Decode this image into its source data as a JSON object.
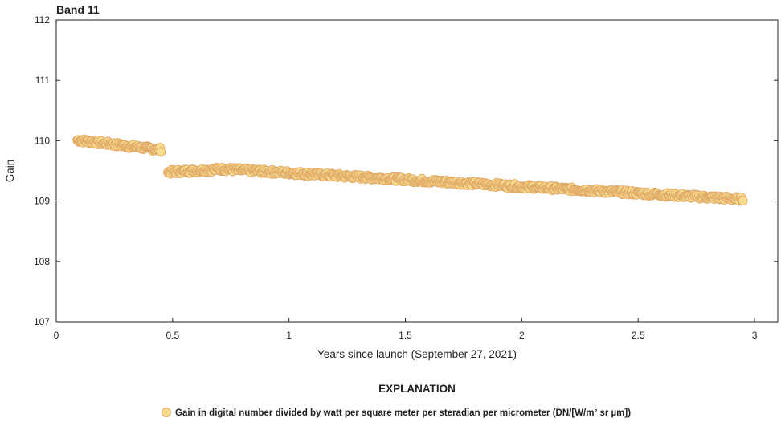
{
  "chart_data": {
    "type": "scatter",
    "title": "Band 11",
    "xlabel": "Years since launch (September 27, 2021)",
    "ylabel": "Gain",
    "xlim": [
      0,
      3.1
    ],
    "ylim": [
      107,
      112
    ],
    "x_ticks": [
      "0",
      "0.5",
      "1",
      "1.5",
      "2",
      "2.5",
      "3"
    ],
    "y_ticks": [
      "107",
      "108",
      "109",
      "110",
      "111",
      "112"
    ],
    "grid": false,
    "legend_title": "EXPLANATION",
    "legend_position": "bottom-center",
    "series": [
      {
        "name": "Gain in digital number divided by watt per square meter per steradian per micrometer (DN/[W/m² sr µm])",
        "color": "#e0a868",
        "marker_fill": "#f7dc8f",
        "segments": [
          {
            "x_start": 0.09,
            "x_end": 0.45,
            "y_start": 110.01,
            "y_end": 109.85
          },
          {
            "x_start": 0.48,
            "x_end": 0.72,
            "y_start": 109.48,
            "y_end": 109.53
          },
          {
            "x_start": 0.72,
            "x_end": 2.95,
            "y_start": 109.53,
            "y_end": 109.03
          }
        ]
      }
    ]
  }
}
